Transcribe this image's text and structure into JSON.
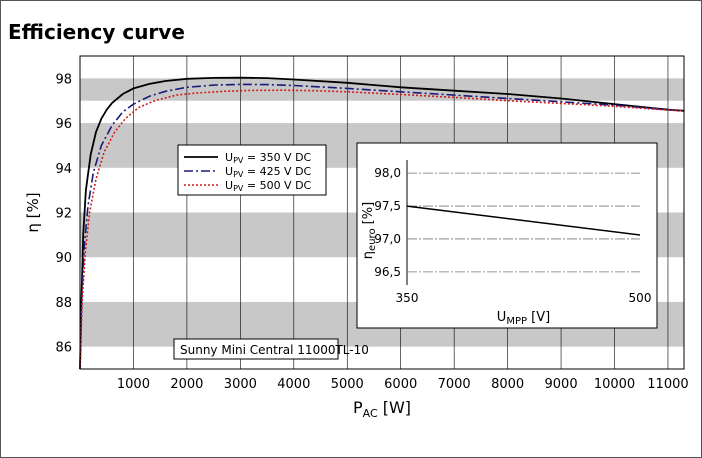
{
  "page": {
    "title": "Efficiency curve"
  },
  "chart_data": {
    "type": "line",
    "xlabel": {
      "base": "P",
      "sub": "AC",
      "unit": " [W]"
    },
    "ylabel": "η [%]",
    "xlim": [
      0,
      11300
    ],
    "ylim": [
      85,
      99
    ],
    "xticks": [
      1000,
      2000,
      3000,
      4000,
      5000,
      6000,
      7000,
      8000,
      9000,
      10000,
      11000
    ],
    "yticks": [
      86,
      88,
      90,
      92,
      94,
      96,
      98
    ],
    "grid": true,
    "annotation": "Sunny Mini Central 11000TL-10",
    "legend_position": "upper-left-middle",
    "series": [
      {
        "name_base": "U",
        "name_sub": "PV",
        "name_rest": " = 350 V DC",
        "color": "#000000",
        "dash": "",
        "x": [
          0,
          20,
          60,
          110,
          200,
          300,
          400,
          500,
          600,
          800,
          1000,
          1300,
          1600,
          2000,
          2500,
          3000,
          3500,
          4000,
          5000,
          6000,
          7000,
          8000,
          9000,
          10000,
          11000,
          11300
        ],
        "y": [
          85.0,
          87.5,
          91.0,
          93.0,
          94.6,
          95.6,
          96.2,
          96.6,
          96.9,
          97.3,
          97.55,
          97.75,
          97.88,
          97.98,
          98.02,
          98.03,
          98.01,
          97.95,
          97.8,
          97.6,
          97.45,
          97.3,
          97.1,
          96.85,
          96.6,
          96.55
        ]
      },
      {
        "name_base": "U",
        "name_sub": "PV",
        "name_rest": " = 425 V DC",
        "color": "#1a1a7a",
        "dash": "9,3,2,3",
        "x": [
          0,
          30,
          80,
          150,
          250,
          400,
          600,
          800,
          1000,
          1300,
          1600,
          2000,
          2500,
          3000,
          3500,
          4000,
          5000,
          6000,
          7000,
          8000,
          9000,
          10000,
          11000,
          11300
        ],
        "y": [
          85.0,
          88.0,
          90.5,
          92.3,
          93.8,
          95.0,
          95.9,
          96.5,
          96.85,
          97.2,
          97.42,
          97.6,
          97.7,
          97.73,
          97.72,
          97.68,
          97.55,
          97.4,
          97.25,
          97.1,
          96.95,
          96.8,
          96.6,
          96.55
        ]
      },
      {
        "name_base": "U",
        "name_sub": "PV",
        "name_rest": " = 500 V DC",
        "color": "#d41c1c",
        "dash": "2,2",
        "x": [
          0,
          40,
          100,
          180,
          300,
          450,
          650,
          850,
          1100,
          1400,
          1800,
          2200,
          2700,
          3200,
          3800,
          4400,
          5000,
          6000,
          7000,
          8000,
          9000,
          10000,
          11000,
          11300
        ],
        "y": [
          85.0,
          88.0,
          90.2,
          92.0,
          93.5,
          94.7,
          95.6,
          96.2,
          96.7,
          97.0,
          97.25,
          97.35,
          97.42,
          97.46,
          97.47,
          97.45,
          97.4,
          97.28,
          97.15,
          97.0,
          96.88,
          96.75,
          96.58,
          96.55
        ]
      }
    ],
    "inset": {
      "type": "line",
      "xlabel": {
        "base": "U",
        "sub": "MPP",
        "unit": " [V]"
      },
      "ylabel": {
        "base": "η",
        "sub": "euro",
        "unit": " [%]"
      },
      "xlim": [
        350,
        500
      ],
      "ylim": [
        96.3,
        98.2
      ],
      "xticks": [
        "350",
        "500"
      ],
      "xtick_values": [
        350,
        500
      ],
      "yticks": [
        "98,0",
        "97,5",
        "97,0",
        "96,5"
      ],
      "ytick_values": [
        98.0,
        97.5,
        97.0,
        96.5
      ],
      "series": [
        {
          "x": [
            350,
            500
          ],
          "y": [
            97.5,
            97.06
          ],
          "color": "#000000"
        }
      ]
    }
  }
}
